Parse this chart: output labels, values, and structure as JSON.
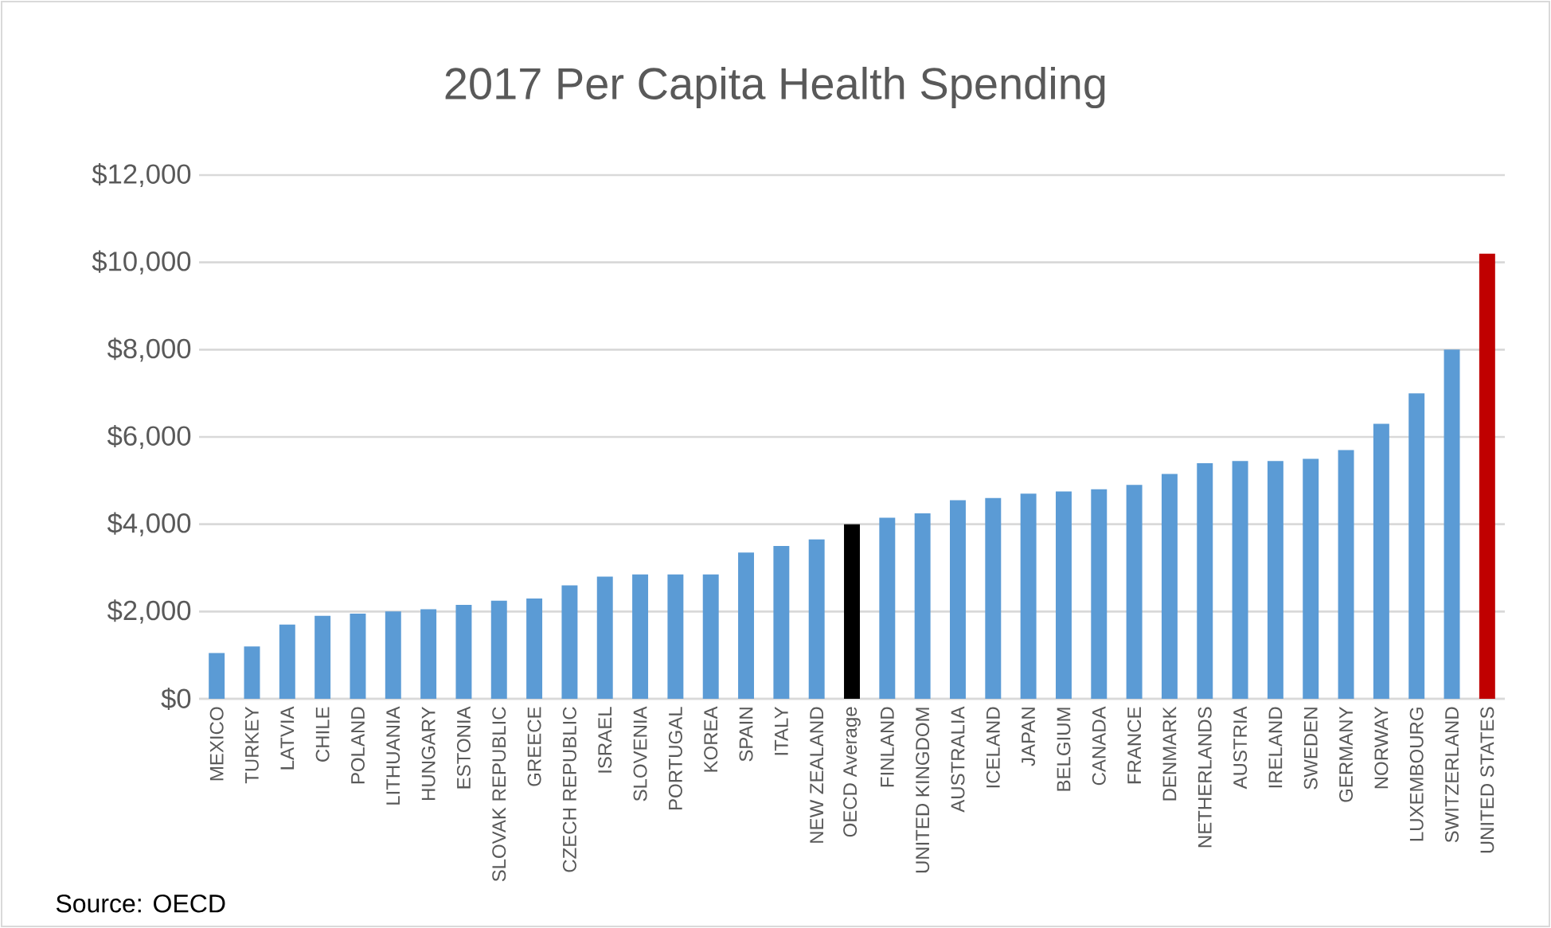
{
  "chart_data": {
    "type": "bar",
    "title": "2017 Per Capita Health Spending",
    "categories": [
      "MEXICO",
      "TURKEY",
      "LATVIA",
      "CHILE",
      "POLAND",
      "LITHUANIA",
      "HUNGARY",
      "ESTONIA",
      "SLOVAK REPUBLIC",
      "GREECE",
      "CZECH REPUBLIC",
      "ISRAEL",
      "SLOVENIA",
      "PORTUGAL",
      "KOREA",
      "SPAIN",
      "ITALY",
      "NEW ZEALAND",
      "OECD Average",
      "FINLAND",
      "UNITED KINGDOM",
      "AUSTRALIA",
      "ICELAND",
      "JAPAN",
      "BELGIUM",
      "CANADA",
      "FRANCE",
      "DENMARK",
      "NETHERLANDS",
      "AUSTRIA",
      "IRELAND",
      "SWEDEN",
      "GERMANY",
      "NORWAY",
      "LUXEMBOURG",
      "SWITZERLAND",
      "UNITED STATES"
    ],
    "values": [
      1050,
      1200,
      1700,
      1900,
      1950,
      2000,
      2050,
      2150,
      2250,
      2300,
      2600,
      2800,
      2850,
      2850,
      2850,
      3350,
      3500,
      3650,
      4000,
      4150,
      4250,
      4550,
      4600,
      4700,
      4750,
      4800,
      4900,
      5150,
      5400,
      5450,
      5450,
      5500,
      5700,
      6300,
      7000,
      8000,
      10200
    ],
    "colors": [
      "#5b9bd5",
      "#5b9bd5",
      "#5b9bd5",
      "#5b9bd5",
      "#5b9bd5",
      "#5b9bd5",
      "#5b9bd5",
      "#5b9bd5",
      "#5b9bd5",
      "#5b9bd5",
      "#5b9bd5",
      "#5b9bd5",
      "#5b9bd5",
      "#5b9bd5",
      "#5b9bd5",
      "#5b9bd5",
      "#5b9bd5",
      "#5b9bd5",
      "#000000",
      "#5b9bd5",
      "#5b9bd5",
      "#5b9bd5",
      "#5b9bd5",
      "#5b9bd5",
      "#5b9bd5",
      "#5b9bd5",
      "#5b9bd5",
      "#5b9bd5",
      "#5b9bd5",
      "#5b9bd5",
      "#5b9bd5",
      "#5b9bd5",
      "#5b9bd5",
      "#5b9bd5",
      "#5b9bd5",
      "#5b9bd5",
      "#c00000"
    ],
    "ylim": [
      0,
      12000
    ],
    "yticks": [
      {
        "value": 0,
        "label": "$0"
      },
      {
        "value": 2000,
        "label": "$2,000"
      },
      {
        "value": 4000,
        "label": "$4,000"
      },
      {
        "value": 6000,
        "label": "$6,000"
      },
      {
        "value": 8000,
        "label": "$8,000"
      },
      {
        "value": 10000,
        "label": "$10,000"
      },
      {
        "value": 12000,
        "label": "$12,000"
      }
    ],
    "grid": "y",
    "annotations": [
      "Source: OECD"
    ]
  }
}
